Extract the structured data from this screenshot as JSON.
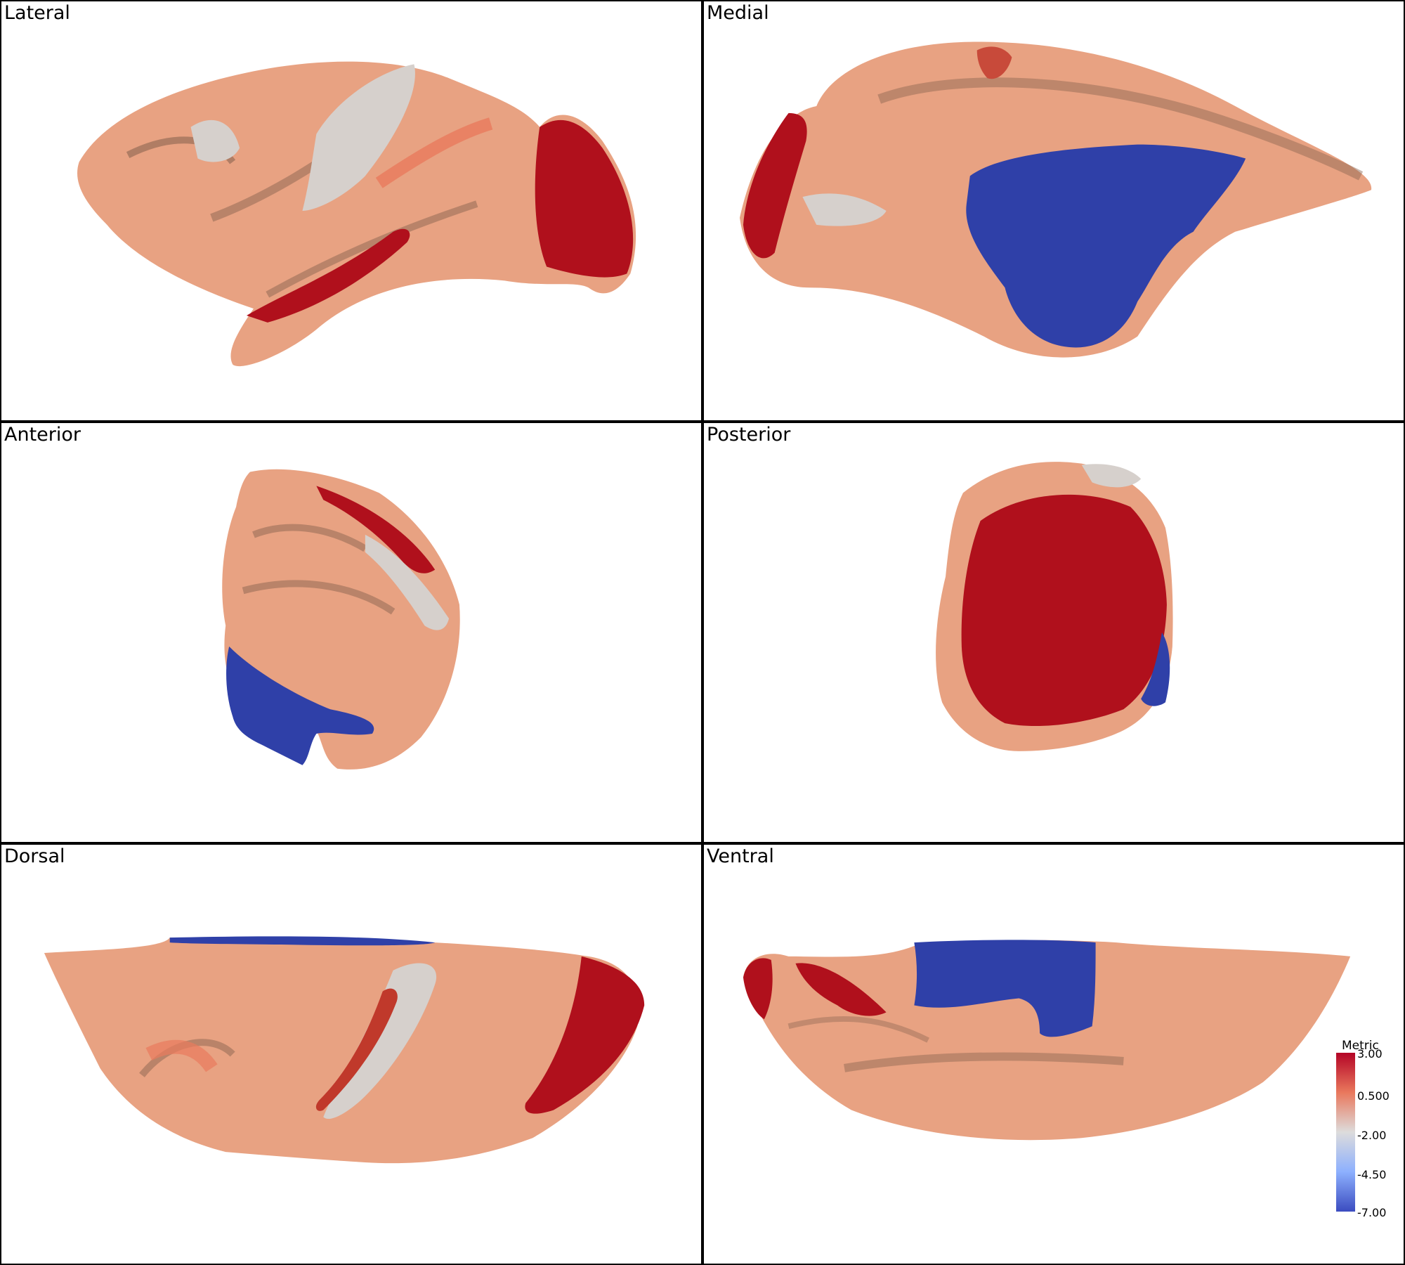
{
  "panels": [
    {
      "id": "lateral",
      "label": "Lateral"
    },
    {
      "id": "medial",
      "label": "Medial"
    },
    {
      "id": "anterior",
      "label": "Anterior"
    },
    {
      "id": "posterior",
      "label": "Posterior"
    },
    {
      "id": "dorsal",
      "label": "Dorsal"
    },
    {
      "id": "ventral",
      "label": "Ventral"
    }
  ],
  "colorbar": {
    "title": "Metric",
    "ticks": [
      "3.00",
      "0.500",
      "-2.00",
      "-4.50",
      "-7.00"
    ],
    "colors": {
      "max": "#b40426",
      "high": "#e9785d",
      "mid": "#dddcdc",
      "low": "#8db0fe",
      "min": "#3b4cc0"
    }
  },
  "palette": {
    "cortex": "#e8a282",
    "cortex_shadow": "#8a6450",
    "red": "#b0101c",
    "blue": "#2f40a8",
    "grey": "#d6d0cc"
  }
}
